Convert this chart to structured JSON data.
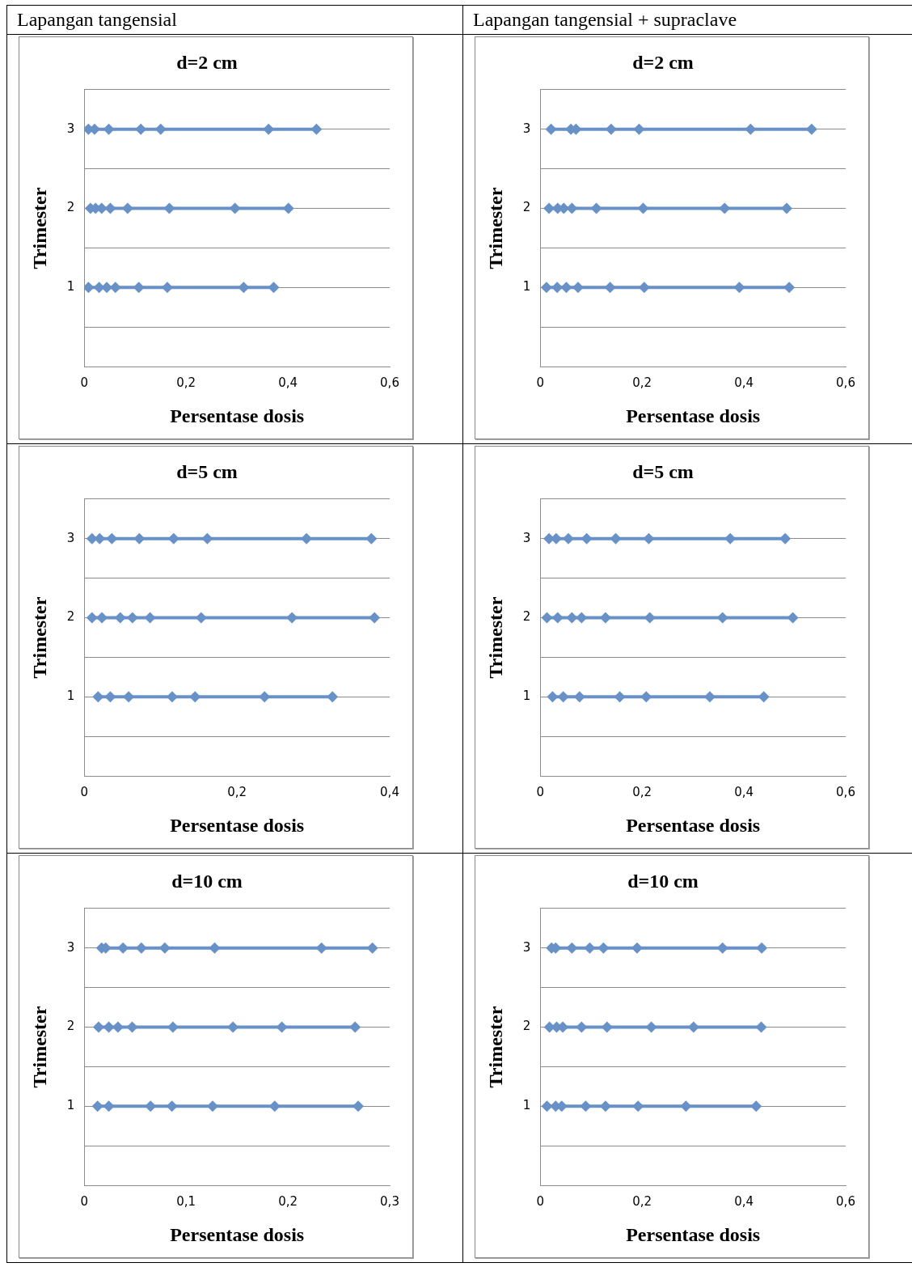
{
  "chart_data": [
    {
      "type": "line",
      "annotations": [
        "Lapangan tangensial"
      ],
      "title": "d=2 cm",
      "xlabel": "Persentase dosis",
      "ylabel": "Trimester",
      "marker": "diamond",
      "line_style": "solid",
      "grid": "y",
      "xlim": [
        0,
        0.6
      ],
      "xticks": [
        {
          "value": 0,
          "label": "0"
        },
        {
          "value": 0.2,
          "label": "0,2"
        },
        {
          "value": 0.4,
          "label": "0,4"
        },
        {
          "value": 0.6,
          "label": "0,6"
        }
      ],
      "ylim": [
        0,
        3.5
      ],
      "yticks": [
        {
          "value": 0.5,
          "label": null
        },
        1,
        {
          "value": 1.5,
          "label": null
        },
        2,
        {
          "value": 2.5,
          "label": null
        },
        3,
        {
          "value": 3.5,
          "label": null
        }
      ],
      "series": [
        {
          "color": "#6791c7",
          "x": [
            0.008,
            0.02,
            0.048,
            0.111,
            0.15,
            0.362,
            0.456
          ],
          "values": [
            3,
            3,
            3,
            3,
            3,
            3,
            3
          ]
        },
        {
          "color": "#6791c7",
          "x": [
            0.012,
            0.022,
            0.034,
            0.051,
            0.085,
            0.167,
            0.296,
            0.401
          ],
          "values": [
            2,
            2,
            2,
            2,
            2,
            2,
            2,
            2
          ]
        },
        {
          "color": "#6791c7",
          "x": [
            0.008,
            0.029,
            0.044,
            0.061,
            0.107,
            0.163,
            0.313,
            0.372
          ],
          "values": [
            1,
            1,
            1,
            1,
            1,
            1,
            1,
            1
          ]
        }
      ]
    },
    {
      "type": "line",
      "annotations": [
        "Lapangan tangensial + supraclave"
      ],
      "title": "d=2 cm",
      "xlabel": "Persentase dosis",
      "ylabel": "Trimester",
      "marker": "diamond",
      "line_style": "solid",
      "grid": "y",
      "xlim": [
        0,
        0.6
      ],
      "xticks": [
        {
          "value": 0,
          "label": "0"
        },
        {
          "value": 0.2,
          "label": "0,2"
        },
        {
          "value": 0.4,
          "label": "0,4"
        },
        {
          "value": 0.6,
          "label": "0,6"
        }
      ],
      "ylim": [
        0,
        3.5
      ],
      "yticks": [
        {
          "value": 0.5,
          "label": null
        },
        1,
        {
          "value": 1.5,
          "label": null
        },
        2,
        {
          "value": 2.5,
          "label": null
        },
        3,
        {
          "value": 3.5,
          "label": null
        }
      ],
      "series": [
        {
          "color": "#6791c7",
          "x": [
            0.021,
            0.06,
            0.07,
            0.139,
            0.194,
            0.413,
            0.533
          ],
          "values": [
            3,
            3,
            3,
            3,
            3,
            3,
            3
          ]
        },
        {
          "color": "#6791c7",
          "x": [
            0.017,
            0.034,
            0.046,
            0.062,
            0.11,
            0.202,
            0.362,
            0.484
          ],
          "values": [
            2,
            2,
            2,
            2,
            2,
            2,
            2,
            2
          ]
        },
        {
          "color": "#6791c7",
          "x": [
            0.012,
            0.033,
            0.051,
            0.074,
            0.137,
            0.204,
            0.391,
            0.489
          ],
          "values": [
            1,
            1,
            1,
            1,
            1,
            1,
            1,
            1
          ]
        }
      ]
    },
    {
      "type": "line",
      "title": "d=5 cm",
      "xlabel": "Persentase dosis",
      "ylabel": "Trimester",
      "marker": "diamond",
      "line_style": "solid",
      "grid": "y",
      "xlim": [
        0,
        0.4
      ],
      "xticks": [
        {
          "value": 0,
          "label": "0"
        },
        {
          "value": 0.2,
          "label": "0,2"
        },
        {
          "value": 0.4,
          "label": "0,4"
        }
      ],
      "ylim": [
        0,
        3.5
      ],
      "yticks": [
        {
          "value": 0.5,
          "label": null
        },
        1,
        {
          "value": 1.5,
          "label": null
        },
        2,
        {
          "value": 2.5,
          "label": null
        },
        3,
        {
          "value": 3.5,
          "label": null
        }
      ],
      "series": [
        {
          "color": "#6791c7",
          "x": [
            0.01,
            0.02,
            0.036,
            0.072,
            0.117,
            0.161,
            0.291,
            0.376
          ],
          "values": [
            3,
            3,
            3,
            3,
            3,
            3,
            3,
            3
          ]
        },
        {
          "color": "#6791c7",
          "x": [
            0.01,
            0.023,
            0.047,
            0.063,
            0.086,
            0.153,
            0.272,
            0.38
          ],
          "values": [
            2,
            2,
            2,
            2,
            2,
            2,
            2,
            2
          ]
        },
        {
          "color": "#6791c7",
          "x": [
            0.018,
            0.034,
            0.058,
            0.115,
            0.145,
            0.236,
            0.325
          ],
          "values": [
            1,
            1,
            1,
            1,
            1,
            1,
            1
          ]
        }
      ]
    },
    {
      "type": "line",
      "title": "d=5 cm",
      "xlabel": "Persentase dosis",
      "ylabel": "Trimester",
      "marker": "diamond",
      "line_style": "solid",
      "grid": "y",
      "xlim": [
        0,
        0.6
      ],
      "xticks": [
        {
          "value": 0,
          "label": "0"
        },
        {
          "value": 0.2,
          "label": "0,2"
        },
        {
          "value": 0.4,
          "label": "0,4"
        },
        {
          "value": 0.6,
          "label": "0,6"
        }
      ],
      "ylim": [
        0,
        3.5
      ],
      "yticks": [
        {
          "value": 0.5,
          "label": null
        },
        1,
        {
          "value": 1.5,
          "label": null
        },
        2,
        {
          "value": 2.5,
          "label": null
        },
        3,
        {
          "value": 3.5,
          "label": null
        }
      ],
      "series": [
        {
          "color": "#6791c7",
          "x": [
            0.017,
            0.031,
            0.055,
            0.091,
            0.148,
            0.213,
            0.373,
            0.481
          ],
          "values": [
            3,
            3,
            3,
            3,
            3,
            3,
            3,
            3
          ]
        },
        {
          "color": "#6791c7",
          "x": [
            0.013,
            0.034,
            0.062,
            0.081,
            0.128,
            0.215,
            0.358,
            0.496
          ],
          "values": [
            2,
            2,
            2,
            2,
            2,
            2,
            2,
            2
          ]
        },
        {
          "color": "#6791c7",
          "x": [
            0.024,
            0.045,
            0.077,
            0.156,
            0.208,
            0.333,
            0.439
          ],
          "values": [
            1,
            1,
            1,
            1,
            1,
            1,
            1
          ]
        }
      ]
    },
    {
      "type": "line",
      "title": "d=10 cm",
      "xlabel": "Persentase dosis",
      "ylabel": "Trimester",
      "marker": "diamond",
      "line_style": "solid",
      "grid": "y",
      "xlim": [
        0,
        0.3
      ],
      "xticks": [
        {
          "value": 0,
          "label": "0"
        },
        {
          "value": 0.1,
          "label": "0,1"
        },
        {
          "value": 0.2,
          "label": "0,2"
        },
        {
          "value": 0.3,
          "label": "0,3"
        }
      ],
      "ylim": [
        0,
        3.5
      ],
      "yticks": [
        {
          "value": 0.5,
          "label": null
        },
        1,
        {
          "value": 1.5,
          "label": null
        },
        2,
        {
          "value": 2.5,
          "label": null
        },
        3,
        {
          "value": 3.5,
          "label": null
        }
      ],
      "series": [
        {
          "color": "#6791c7",
          "x": [
            0.017,
            0.021,
            0.038,
            0.056,
            0.079,
            0.128,
            0.233,
            0.283
          ],
          "values": [
            3,
            3,
            3,
            3,
            3,
            3,
            3,
            3
          ]
        },
        {
          "color": "#6791c7",
          "x": [
            0.014,
            0.024,
            0.033,
            0.047,
            0.087,
            0.146,
            0.194,
            0.266
          ],
          "values": [
            2,
            2,
            2,
            2,
            2,
            2,
            2,
            2
          ]
        },
        {
          "color": "#6791c7",
          "x": [
            0.013,
            0.024,
            0.065,
            0.086,
            0.126,
            0.187,
            0.269
          ],
          "values": [
            1,
            1,
            1,
            1,
            1,
            1,
            1
          ]
        }
      ]
    },
    {
      "type": "line",
      "title": "d=10 cm",
      "xlabel": "Persentase dosis",
      "ylabel": "Trimester",
      "marker": "diamond",
      "line_style": "solid",
      "grid": "y",
      "xlim": [
        0,
        0.6
      ],
      "xticks": [
        {
          "value": 0,
          "label": "0"
        },
        {
          "value": 0.2,
          "label": "0,2"
        },
        {
          "value": 0.4,
          "label": "0,4"
        },
        {
          "value": 0.6,
          "label": "0,6"
        }
      ],
      "ylim": [
        0,
        3.5
      ],
      "yticks": [
        {
          "value": 0.5,
          "label": null
        },
        1,
        {
          "value": 1.5,
          "label": null
        },
        2,
        {
          "value": 2.5,
          "label": null
        },
        3,
        {
          "value": 3.5,
          "label": null
        }
      ],
      "series": [
        {
          "color": "#6791c7",
          "x": [
            0.022,
            0.03,
            0.062,
            0.097,
            0.124,
            0.19,
            0.358,
            0.435
          ],
          "values": [
            3,
            3,
            3,
            3,
            3,
            3,
            3,
            3
          ]
        },
        {
          "color": "#6791c7",
          "x": [
            0.018,
            0.032,
            0.044,
            0.081,
            0.131,
            0.218,
            0.301,
            0.434
          ],
          "values": [
            2,
            2,
            2,
            2,
            2,
            2,
            2,
            2
          ]
        },
        {
          "color": "#6791c7",
          "x": [
            0.013,
            0.03,
            0.042,
            0.089,
            0.128,
            0.192,
            0.286,
            0.424
          ],
          "values": [
            1,
            1,
            1,
            1,
            1,
            1,
            1,
            1
          ]
        }
      ]
    }
  ]
}
